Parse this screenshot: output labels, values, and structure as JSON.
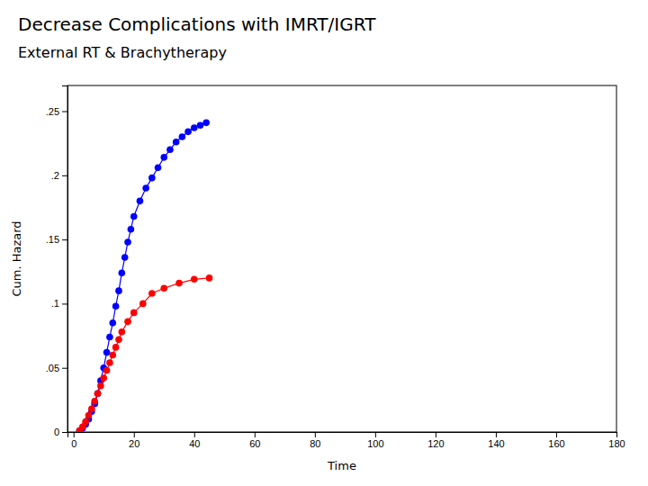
{
  "chart_data": {
    "type": "line",
    "title": "Decrease Complications with IMRT/IGRT",
    "subtitle": "External RT & Brachytherapy",
    "xlabel": "Time",
    "ylabel": "Cum. Hazard",
    "xlim": [
      -2,
      180
    ],
    "ylim": [
      0,
      0.27
    ],
    "xticks": [
      0,
      20,
      40,
      60,
      80,
      100,
      120,
      140,
      160,
      180
    ],
    "yticks": [
      0,
      {
        "value": 0.05,
        "label": ".05"
      },
      {
        "value": 0.1,
        "label": ".1"
      },
      {
        "value": 0.15,
        "label": ".15"
      },
      {
        "value": 0.2,
        "label": ".2"
      },
      {
        "value": 0.25,
        "label": ".25"
      }
    ],
    "marker": "circle",
    "series": [
      {
        "color": "#0000ff",
        "x": [
          2,
          3,
          4,
          5,
          6,
          7,
          8,
          9,
          10,
          11,
          12,
          13,
          14,
          15,
          16,
          17,
          18,
          19,
          20,
          22,
          24,
          26,
          28,
          30,
          32,
          34,
          36,
          38,
          40,
          42,
          44
        ],
        "values": [
          0.001,
          0.003,
          0.006,
          0.01,
          0.016,
          0.022,
          0.03,
          0.04,
          0.05,
          0.062,
          0.074,
          0.085,
          0.098,
          0.11,
          0.124,
          0.136,
          0.148,
          0.158,
          0.168,
          0.18,
          0.19,
          0.198,
          0.206,
          0.214,
          0.22,
          0.226,
          0.23,
          0.234,
          0.237,
          0.239,
          0.241
        ]
      },
      {
        "color": "#ff0000",
        "x": [
          2,
          3,
          4,
          5,
          6,
          7,
          8,
          9,
          10,
          11,
          12,
          13,
          14,
          15,
          16,
          18,
          20,
          23,
          26,
          30,
          35,
          40,
          45
        ],
        "values": [
          0.001,
          0.004,
          0.008,
          0.013,
          0.018,
          0.024,
          0.03,
          0.036,
          0.042,
          0.048,
          0.054,
          0.06,
          0.066,
          0.072,
          0.078,
          0.086,
          0.093,
          0.1,
          0.108,
          0.112,
          0.116,
          0.119,
          0.12
        ]
      }
    ]
  }
}
